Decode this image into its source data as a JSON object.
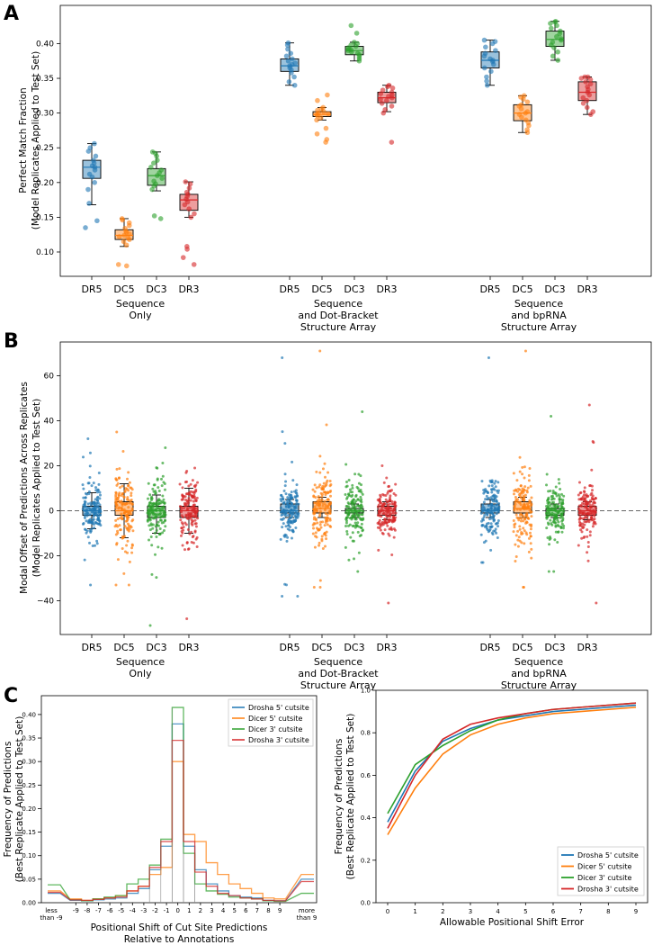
{
  "panel_labels": {
    "a": "A",
    "b": "B",
    "c": "C"
  },
  "colors": {
    "DR5": "#1f77b4",
    "DC5": "#ff7f0e",
    "DC3": "#2ca02c",
    "DR3": "#d62728"
  },
  "group_labels": [
    {
      "l1": "Sequence",
      "l2": "Only",
      "l3": ""
    },
    {
      "l1": "Sequence",
      "l2": "and Dot-Bracket",
      "l3": "Structure Array"
    },
    {
      "l1": "Sequence",
      "l2": "and bpRNA",
      "l3": "Structure Array"
    }
  ],
  "chart_data": [
    {
      "id": "A",
      "type": "box",
      "ylabel": "Perfect Match Fraction",
      "ylabel2": "(Model Replicates Applied to Test Set)",
      "ylim": [
        0.065,
        0.455
      ],
      "yticks": [
        0.1,
        0.15,
        0.2,
        0.25,
        0.3,
        0.35,
        0.4
      ],
      "ytick_labels": [
        "0.10",
        "0.15",
        "0.20",
        "0.25",
        "0.30",
        "0.35",
        "0.40"
      ],
      "categories": [
        "DR5",
        "DC5",
        "DC3",
        "DR3",
        "DR5",
        "DC5",
        "DC3",
        "DR3",
        "DR5",
        "DC5",
        "DC3",
        "DR3"
      ],
      "boxes": [
        {
          "q1": 0.206,
          "med": 0.222,
          "q3": 0.232,
          "lo": 0.168,
          "hi": 0.256,
          "pts": [
            0.135,
            0.145,
            0.17,
            0.19,
            0.2,
            0.208,
            0.212,
            0.218,
            0.222,
            0.224,
            0.228,
            0.232,
            0.238,
            0.245,
            0.25,
            0.256
          ]
        },
        {
          "q1": 0.118,
          "med": 0.124,
          "q3": 0.132,
          "lo": 0.108,
          "hi": 0.148,
          "pts": [
            0.08,
            0.082,
            0.11,
            0.115,
            0.118,
            0.12,
            0.122,
            0.124,
            0.126,
            0.128,
            0.13,
            0.134,
            0.138,
            0.142,
            0.146,
            0.148
          ]
        },
        {
          "q1": 0.196,
          "med": 0.21,
          "q3": 0.22,
          "lo": 0.188,
          "hi": 0.244,
          "pts": [
            0.148,
            0.152,
            0.19,
            0.195,
            0.198,
            0.202,
            0.206,
            0.21,
            0.214,
            0.218,
            0.222,
            0.228,
            0.232,
            0.238,
            0.242,
            0.244
          ]
        },
        {
          "q1": 0.16,
          "med": 0.175,
          "q3": 0.183,
          "lo": 0.15,
          "hi": 0.201,
          "pts": [
            0.082,
            0.092,
            0.104,
            0.108,
            0.15,
            0.155,
            0.162,
            0.168,
            0.172,
            0.176,
            0.18,
            0.183,
            0.186,
            0.192,
            0.198,
            0.201
          ]
        },
        {
          "q1": 0.36,
          "med": 0.368,
          "q3": 0.378,
          "lo": 0.34,
          "hi": 0.401,
          "pts": [
            0.34,
            0.345,
            0.352,
            0.358,
            0.362,
            0.365,
            0.368,
            0.37,
            0.372,
            0.375,
            0.378,
            0.382,
            0.386,
            0.392,
            0.398,
            0.401
          ]
        },
        {
          "q1": 0.295,
          "med": 0.298,
          "q3": 0.302,
          "lo": 0.29,
          "hi": 0.308,
          "pts": [
            0.258,
            0.262,
            0.27,
            0.278,
            0.29,
            0.293,
            0.296,
            0.298,
            0.299,
            0.3,
            0.302,
            0.304,
            0.306,
            0.308,
            0.318,
            0.326
          ]
        },
        {
          "q1": 0.384,
          "med": 0.39,
          "q3": 0.396,
          "lo": 0.375,
          "hi": 0.402,
          "pts": [
            0.375,
            0.378,
            0.381,
            0.384,
            0.386,
            0.388,
            0.39,
            0.391,
            0.392,
            0.394,
            0.396,
            0.398,
            0.4,
            0.402,
            0.415,
            0.426
          ]
        },
        {
          "q1": 0.315,
          "med": 0.322,
          "q3": 0.33,
          "lo": 0.302,
          "hi": 0.34,
          "pts": [
            0.258,
            0.3,
            0.305,
            0.31,
            0.314,
            0.318,
            0.32,
            0.322,
            0.324,
            0.326,
            0.328,
            0.33,
            0.333,
            0.336,
            0.338,
            0.34
          ]
        },
        {
          "q1": 0.365,
          "med": 0.376,
          "q3": 0.388,
          "lo": 0.34,
          "hi": 0.405,
          "pts": [
            0.34,
            0.346,
            0.352,
            0.36,
            0.365,
            0.37,
            0.374,
            0.376,
            0.378,
            0.382,
            0.386,
            0.39,
            0.395,
            0.4,
            0.403,
            0.405
          ]
        },
        {
          "q1": 0.289,
          "med": 0.3,
          "q3": 0.312,
          "lo": 0.272,
          "hi": 0.325,
          "pts": [
            0.272,
            0.276,
            0.282,
            0.286,
            0.29,
            0.294,
            0.298,
            0.3,
            0.302,
            0.306,
            0.31,
            0.312,
            0.316,
            0.32,
            0.323,
            0.325
          ]
        },
        {
          "q1": 0.396,
          "med": 0.406,
          "q3": 0.418,
          "lo": 0.376,
          "hi": 0.432,
          "pts": [
            0.376,
            0.382,
            0.388,
            0.394,
            0.398,
            0.402,
            0.405,
            0.407,
            0.41,
            0.414,
            0.418,
            0.422,
            0.426,
            0.429,
            0.431,
            0.432
          ]
        },
        {
          "q1": 0.318,
          "med": 0.33,
          "q3": 0.345,
          "lo": 0.298,
          "hi": 0.352,
          "pts": [
            0.298,
            0.302,
            0.308,
            0.314,
            0.318,
            0.322,
            0.326,
            0.33,
            0.334,
            0.338,
            0.342,
            0.345,
            0.348,
            0.35,
            0.352,
            0.352
          ]
        }
      ]
    },
    {
      "id": "B",
      "type": "box-strip",
      "ylabel": "Modal Offset of Predictions Across Replicates",
      "ylabel2": "(Model Replicates Applied to Test Set)",
      "ylim": [
        -55,
        75
      ],
      "yticks": [
        -40,
        -20,
        0,
        20,
        40,
        60
      ],
      "ytick_labels": [
        "−40",
        "−20",
        "0",
        "20",
        "40",
        "60"
      ],
      "categories": [
        "DR5",
        "DC5",
        "DC3",
        "DR3",
        "DR5",
        "DC5",
        "DC3",
        "DR3",
        "DR5",
        "DC5",
        "DC3",
        "DR3"
      ],
      "reference_line": 0,
      "boxes": [
        {
          "q1": -2,
          "med": 0,
          "q3": 2,
          "lo": -8,
          "hi": 8,
          "spread": 6,
          "min": -33,
          "max": 32
        },
        {
          "q1": -2,
          "med": 0,
          "q3": 4,
          "lo": -12,
          "hi": 12,
          "spread": 8,
          "min": -33,
          "max": 35
        },
        {
          "q1": -3,
          "med": 0,
          "q3": 2,
          "lo": -10,
          "hi": 7,
          "spread": 7,
          "min": -51,
          "max": 28
        },
        {
          "q1": -3,
          "med": 0,
          "q3": 2,
          "lo": -10,
          "hi": 10,
          "spread": 7,
          "min": -48,
          "max": 19
        },
        {
          "q1": -1,
          "med": 0,
          "q3": 3,
          "lo": -3,
          "hi": 5,
          "spread": 6,
          "min": -38,
          "max": 68
        },
        {
          "q1": -1,
          "med": 1,
          "q3": 4,
          "lo": -3,
          "hi": 6,
          "spread": 8,
          "min": -34,
          "max": 71
        },
        {
          "q1": -1,
          "med": 0,
          "q3": 1,
          "lo": -3,
          "hi": 3,
          "spread": 6,
          "min": -27,
          "max": 44
        },
        {
          "q1": -2,
          "med": 0,
          "q3": 2,
          "lo": -4,
          "hi": 4,
          "spread": 6,
          "min": -41,
          "max": 20
        },
        {
          "q1": -1,
          "med": 0,
          "q3": 3,
          "lo": -3,
          "hi": 5,
          "spread": 6,
          "min": -23,
          "max": 68
        },
        {
          "q1": -1,
          "med": 1,
          "q3": 4,
          "lo": -3,
          "hi": 6,
          "spread": 8,
          "min": -34,
          "max": 71
        },
        {
          "q1": -2,
          "med": 0,
          "q3": 1,
          "lo": -3,
          "hi": 3,
          "spread": 6,
          "min": -27,
          "max": 42
        },
        {
          "q1": -2,
          "med": 0,
          "q3": 2,
          "lo": -4,
          "hi": 4,
          "spread": 6,
          "min": -41,
          "max": 47
        }
      ]
    },
    {
      "id": "C-left",
      "type": "histogram",
      "ylabel": "Frequency of Predictions",
      "ylabel2": "(Best Replicate Applied to Test Set)",
      "xlabel": "Positional Shift of Cut Site Predictions",
      "xlabel2": "Relative to Annotations",
      "ylim": [
        0,
        0.44
      ],
      "yticks": [
        0.0,
        0.05,
        0.1,
        0.15,
        0.2,
        0.25,
        0.3,
        0.35,
        0.4
      ],
      "ytick_labels": [
        "0.00",
        "0.05",
        "0.10",
        "0.15",
        "0.20",
        "0.25",
        "0.30",
        "0.35",
        "0.40"
      ],
      "bins": [
        "less than -9",
        "-9",
        "-8",
        "-7",
        "-6",
        "-5",
        "-4",
        "-3",
        "-2",
        "-1",
        "0",
        "1",
        "2",
        "3",
        "4",
        "5",
        "6",
        "7",
        "8",
        "9",
        "more than 9"
      ],
      "tick_labels": [
        "-9",
        "-8",
        "-7",
        "-6",
        "-5",
        "-4",
        "-3",
        "-2",
        "-1",
        "0",
        "1",
        "2",
        "3",
        "4",
        "5",
        "6",
        "7",
        "8",
        "9"
      ],
      "edge_left": {
        "l1": "less",
        "l2": "than -9"
      },
      "edge_right": {
        "l1": "more",
        "l2": "than 9"
      },
      "series": [
        {
          "name": "Drosha 5' cutsite",
          "color": "#1f77b4",
          "values": [
            0.02,
            0.005,
            0.004,
            0.006,
            0.008,
            0.01,
            0.02,
            0.03,
            0.07,
            0.12,
            0.38,
            0.12,
            0.07,
            0.04,
            0.025,
            0.015,
            0.012,
            0.01,
            0.005,
            0.004,
            0.05
          ]
        },
        {
          "name": "Dicer 5' cutsite",
          "color": "#ff7f0e",
          "values": [
            0.025,
            0.008,
            0.005,
            0.008,
            0.01,
            0.015,
            0.025,
            0.035,
            0.06,
            0.075,
            0.3,
            0.145,
            0.13,
            0.085,
            0.06,
            0.04,
            0.03,
            0.02,
            0.01,
            0.008,
            0.06
          ]
        },
        {
          "name": "Dicer 3' cutsite",
          "color": "#2ca02c",
          "values": [
            0.038,
            0.006,
            0.004,
            0.008,
            0.012,
            0.015,
            0.04,
            0.05,
            0.08,
            0.135,
            0.415,
            0.105,
            0.04,
            0.025,
            0.018,
            0.012,
            0.01,
            0.008,
            0.004,
            0.003,
            0.02
          ]
        },
        {
          "name": "Drosha 3' cutsite",
          "color": "#d62728",
          "values": [
            0.022,
            0.006,
            0.005,
            0.007,
            0.01,
            0.012,
            0.025,
            0.035,
            0.075,
            0.13,
            0.345,
            0.13,
            0.065,
            0.035,
            0.02,
            0.015,
            0.01,
            0.008,
            0.005,
            0.004,
            0.045
          ]
        }
      ]
    },
    {
      "id": "C-right",
      "type": "line",
      "ylabel": "Frequency of Predictions",
      "ylabel2": "(Best Replicate Applied to Test Set)",
      "xlabel": "Allowable Positional Shift Error",
      "x": [
        0,
        1,
        2,
        3,
        4,
        5,
        6,
        7,
        8,
        9
      ],
      "xticks": [
        "0",
        "1",
        "2",
        "3",
        "4",
        "5",
        "6",
        "7",
        "8",
        "9"
      ],
      "ylim": [
        0,
        1.0
      ],
      "yticks": [
        0.0,
        0.2,
        0.4,
        0.6,
        0.8,
        1.0
      ],
      "ytick_labels": [
        "0.0",
        "0.2",
        "0.4",
        "0.6",
        "0.8",
        "1.0"
      ],
      "series": [
        {
          "name": "Drosha 5' cutsite",
          "color": "#1f77b4",
          "values": [
            0.38,
            0.62,
            0.76,
            0.82,
            0.86,
            0.88,
            0.9,
            0.91,
            0.92,
            0.93
          ]
        },
        {
          "name": "Dicer 5' cutsite",
          "color": "#ff7f0e",
          "values": [
            0.32,
            0.54,
            0.7,
            0.79,
            0.84,
            0.87,
            0.89,
            0.9,
            0.91,
            0.92
          ]
        },
        {
          "name": "Dicer 3' cutsite",
          "color": "#2ca02c",
          "values": [
            0.42,
            0.65,
            0.74,
            0.81,
            0.86,
            0.89,
            0.91,
            0.92,
            0.93,
            0.94
          ]
        },
        {
          "name": "Drosha 3' cutsite",
          "color": "#d62728",
          "values": [
            0.35,
            0.6,
            0.77,
            0.84,
            0.87,
            0.89,
            0.91,
            0.92,
            0.93,
            0.94
          ]
        }
      ]
    }
  ]
}
